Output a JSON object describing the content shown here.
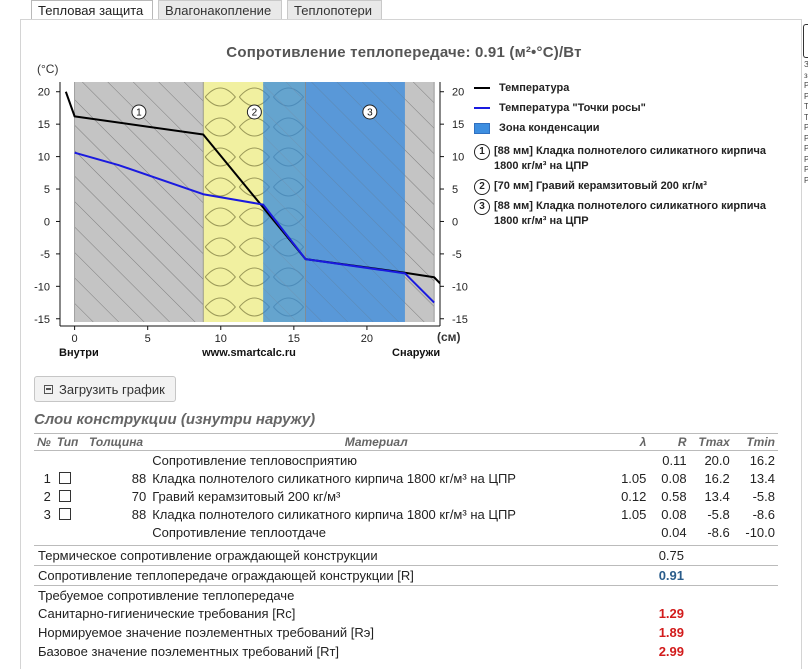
{
  "tabs": [
    {
      "label": "Тепловая защита",
      "active": true
    },
    {
      "label": "Влагонакопление",
      "active": false
    },
    {
      "label": "Теплопотери",
      "active": false
    }
  ],
  "chart": {
    "title": "Сопротивление теплопередаче: 0.91 (м²•°С)/Вт",
    "y_unit": "(°С)",
    "x_unit": "(см)",
    "inside_label": "Внутри",
    "outside_label": "Снаружи",
    "watermark": "www.smartcalc.ru",
    "y_ticks": [
      "20",
      "15",
      "10",
      "5",
      "0",
      "-5",
      "-10",
      "-15"
    ],
    "x_ticks": [
      "0",
      "5",
      "10",
      "15",
      "20"
    ],
    "layer_numbers": [
      "1",
      "2",
      "3"
    ]
  },
  "chart_data": {
    "type": "line",
    "title": "Сопротивление теплопередаче: 0.91 (м²•°С)/Вт",
    "xlabel": "(см)",
    "ylabel": "(°С)",
    "xlim": [
      -1,
      25
    ],
    "ylim": [
      -15.5,
      21.5
    ],
    "layers": [
      {
        "from": 0,
        "to": 8.8,
        "fill": "#c4c4c4"
      },
      {
        "from": 8.8,
        "to": 15.8,
        "fill": "#f1f0a0"
      },
      {
        "from": 15.8,
        "to": 24.6,
        "fill": "#c4c4c4"
      }
    ],
    "condensation_zone": [
      12.9,
      22.6
    ],
    "series": [
      {
        "name": "Температура",
        "color": "#000000",
        "x": [
          -0.6,
          0,
          8.8,
          15.8,
          22.6,
          24.6,
          25.2
        ],
        "y": [
          20,
          16.2,
          13.4,
          -5.8,
          -7.9,
          -8.6,
          -10
        ]
      },
      {
        "name": "Температура \"Точки росы\"",
        "color": "#1a1adf",
        "x": [
          0,
          3,
          8.8,
          12.9,
          15.8,
          22.6,
          24.6
        ],
        "y": [
          10.6,
          8.7,
          4.2,
          2.6,
          -5.8,
          -8.0,
          -12.5
        ]
      }
    ]
  },
  "legend": {
    "temperature": "Температура",
    "dew_point": "Температура \"Точки росы\"",
    "condensation": "Зона конденсации",
    "layers": [
      {
        "num": "1",
        "text": "[88 мм] Кладка полнотелого силикатного кирпича 1800 кг/м³ на ЦПР"
      },
      {
        "num": "2",
        "text": "[70 мм] Гравий керамзитовый 200 кг/м³"
      },
      {
        "num": "3",
        "text": "[88 мм] Кладка полнотелого силикатного кирпича 1800 кг/м³ на ЦПР"
      }
    ]
  },
  "load_button": "Загрузить график",
  "section_title": "Слои конструкции (изнутри наружу)",
  "table": {
    "headers": {
      "no": "№",
      "type": "Тип",
      "thickness": "Толщина",
      "material": "Материал",
      "lambda": "λ",
      "r": "R",
      "tmax": "Tmax",
      "tmin": "Tmin"
    },
    "rows": [
      {
        "no": "",
        "thickness": "",
        "material": "Сопротивление тепловосприятию",
        "lambda": "",
        "r": "0.11",
        "tmax": "20.0",
        "tmin": "16.2"
      },
      {
        "no": "1",
        "thickness": "88",
        "material": "Кладка полнотелого силикатного кирпича 1800 кг/м³ на ЦПР",
        "lambda": "1.05",
        "r": "0.08",
        "tmax": "16.2",
        "tmin": "13.4"
      },
      {
        "no": "2",
        "thickness": "70",
        "material": "Гравий керамзитовый 200 кг/м³",
        "lambda": "0.12",
        "r": "0.58",
        "tmax": "13.4",
        "tmin": "-5.8"
      },
      {
        "no": "3",
        "thickness": "88",
        "material": "Кладка полнотелого силикатного кирпича 1800 кг/м³ на ЦПР",
        "lambda": "1.05",
        "r": "0.08",
        "tmax": "-5.8",
        "tmin": "-8.6"
      },
      {
        "no": "",
        "thickness": "",
        "material": "Сопротивление теплоотдаче",
        "lambda": "",
        "r": "0.04",
        "tmax": "-8.6",
        "tmin": "-10.0"
      }
    ]
  },
  "summary": {
    "thermal_label": "Термическое сопротивление ограждающей конструкции",
    "thermal_value": "0.75",
    "transfer_label": "Сопротивление теплопередаче ограждающей конструкции [R]",
    "transfer_value": "0.91",
    "required_label": "Требуемое сопротивление теплопередаче",
    "sanitary_label": "Санитарно-гигиенические требования [Rс]",
    "sanitary_value": "1.29",
    "element_label": "Нормируемое значение поэлементных требований [Rэ]",
    "element_value": "1.89",
    "base_label": "Базовое значение поэлементных требований [Rт]",
    "base_value": "2.99"
  }
}
